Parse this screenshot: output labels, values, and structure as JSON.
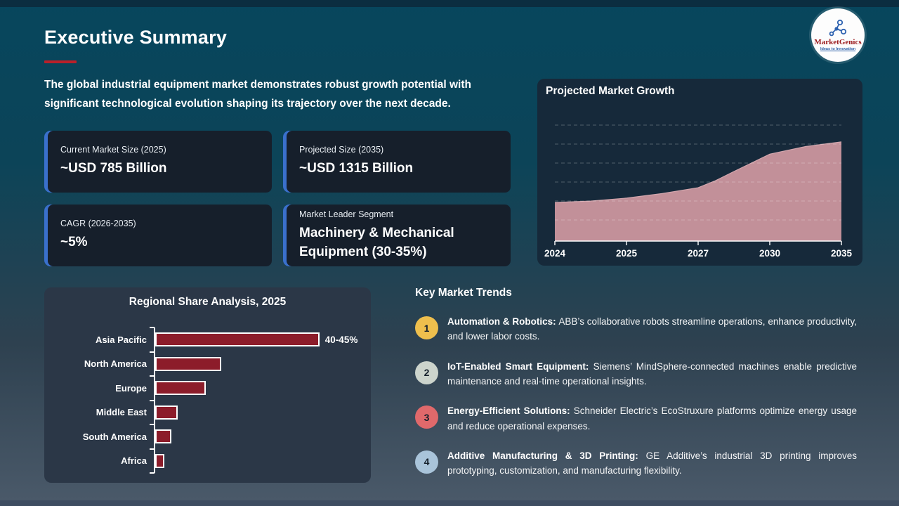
{
  "page": {
    "title": "Executive Summary",
    "intro": "The global industrial equipment market demonstrates robust growth potential with significant technological evolution shaping its trajectory over the next decade.",
    "accent_red": "#b9202a",
    "accent_blue": "#3a70cc"
  },
  "logo": {
    "brand": "MarketGenics",
    "tagline": "Ideas to Innovation"
  },
  "stats": [
    {
      "label": "Current Market Size (2025)",
      "value": "~USD 785 Billion"
    },
    {
      "label": "Projected Size (2035)",
      "value": "~USD 1315 Billion"
    },
    {
      "label": "CAGR (2026-2035)",
      "value": "~5%"
    },
    {
      "label": "Market Leader Segment",
      "value": "Machinery & Mechanical Equipment (30-35%)"
    }
  ],
  "chart_data": [
    {
      "id": "projected-market-growth",
      "type": "area",
      "title": "Projected Market Growth",
      "x_tick_labels": [
        "2024",
        "2025",
        "2027",
        "2030",
        "2035"
      ],
      "y_axis": "unlabeled (no tick values shown); 6 dashed horizontal gridlines",
      "series": [
        {
          "name": "Projected market size (relative height, 0-100)",
          "x_frac": [
            0,
            0.125,
            0.25,
            0.375,
            0.5,
            0.56,
            0.625,
            0.75,
            0.875,
            1
          ],
          "y_frac": [
            0.333,
            0.345,
            0.37,
            0.41,
            0.46,
            0.52,
            0.6,
            0.75,
            0.815,
            0.855
          ]
        }
      ],
      "values_at_ticks_pct_of_plot_height": [
        33,
        37,
        46,
        75,
        86
      ],
      "fill_color": "#c29099",
      "line_color": "#d2a6ad",
      "axis_color": "#ffffff"
    },
    {
      "id": "regional-share-analysis",
      "type": "bar",
      "orientation": "horizontal",
      "title": "Regional Share Analysis, 2025",
      "categories": [
        "Asia Pacific",
        "North America",
        "Europe",
        "Middle East",
        "South America",
        "Africa"
      ],
      "values_pct": [
        42.5,
        17,
        13,
        5.8,
        4.2,
        2.4
      ],
      "data_labels": [
        "40-45%",
        "",
        "",
        "",
        "",
        ""
      ],
      "bar_color": "#8c1c2a",
      "bar_border_color": "#ffffff",
      "xlim": [
        0,
        45
      ],
      "grid": false
    }
  ],
  "trends": {
    "heading": "Key Market Trends",
    "items": [
      {
        "num": "1",
        "badge_color": "#eebf4d",
        "lead": "Automation & Robotics:",
        "text": "ABB’s collaborative robots streamline operations, enhance productivity, and lower labor costs."
      },
      {
        "num": "2",
        "badge_color": "#ccd4cc",
        "lead": "IoT-Enabled Smart Equipment:",
        "text": "Siemens’ MindSphere-connected machines enable predictive maintenance and real-time operational insights."
      },
      {
        "num": "3",
        "badge_color": "#e0696b",
        "lead": "Energy-Efficient Solutions:",
        "text": "Schneider Electric’s EcoStruxure platforms optimize energy usage and reduce operational expenses."
      },
      {
        "num": "4",
        "badge_color": "#a9c4da",
        "lead": "Additive Manufacturing & 3D Printing:",
        "text": "GE Additive’s industrial 3D printing improves prototyping, customization, and manufacturing flexibility."
      }
    ]
  }
}
